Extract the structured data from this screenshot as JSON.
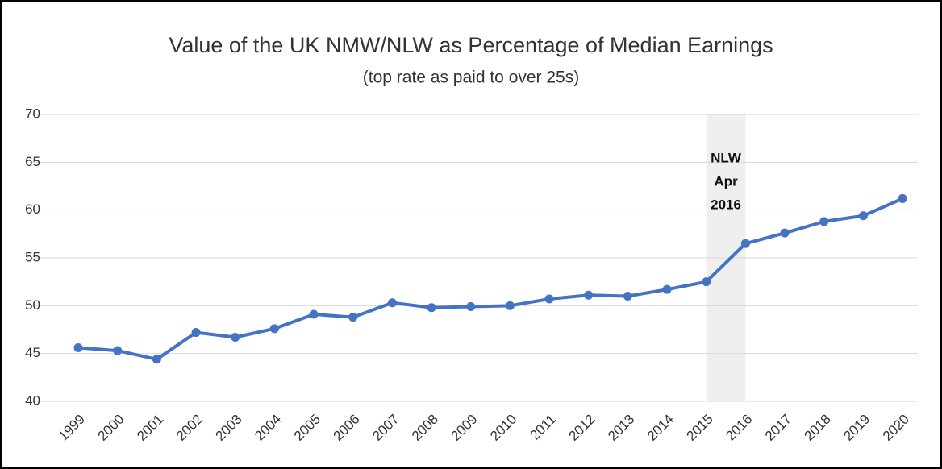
{
  "chart_data": {
    "type": "line",
    "title": "Value of the UK NMW/NLW as Percentage of Median Earnings",
    "subtitle": "(top rate as paid to over 25s)",
    "categories": [
      "1999",
      "2000",
      "2001",
      "2002",
      "2003",
      "2004",
      "2005",
      "2006",
      "2007",
      "2008",
      "2009",
      "2010",
      "2011",
      "2012",
      "2013",
      "2014",
      "2015",
      "2016",
      "2017",
      "2018",
      "2019",
      "2020"
    ],
    "values": [
      45.6,
      45.3,
      44.4,
      47.2,
      46.7,
      47.6,
      49.1,
      48.8,
      50.3,
      49.8,
      49.9,
      50.0,
      50.7,
      51.1,
      51.0,
      51.7,
      52.5,
      56.5,
      57.6,
      58.8,
      59.4,
      61.2
    ],
    "color": "#4472c4",
    "ylim": [
      40,
      70
    ],
    "yticks": [
      40,
      45,
      50,
      55,
      60,
      65,
      70
    ],
    "grid": true,
    "annotation": {
      "lines": [
        "NLW",
        "Apr",
        "2016"
      ],
      "from": "2015",
      "to": "2016"
    }
  }
}
